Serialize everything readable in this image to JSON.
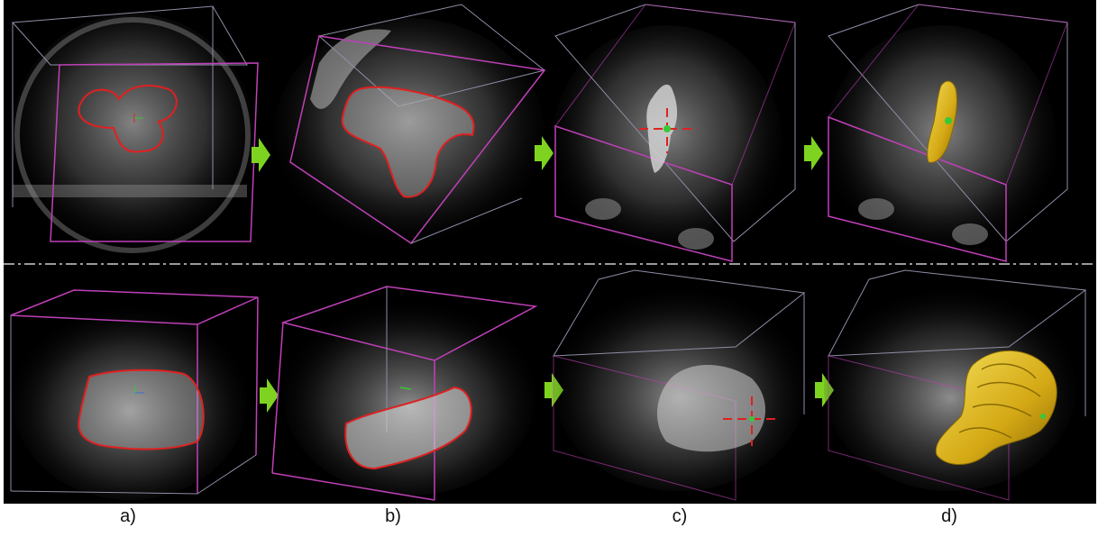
{
  "figure": {
    "background": "#000000",
    "box_color": "#c040b8",
    "box_back_color": "#8e8ea6",
    "contour_color": "#e02020",
    "arrow_color": "#7ed321",
    "segmentation_color": "#e8c21a",
    "divider_color": "#9a9a9a"
  },
  "captions": [
    "a)",
    "b)",
    "c)",
    "d)"
  ],
  "rows": [
    {
      "name": "skull-row",
      "panels": [
        "a",
        "b",
        "c",
        "d"
      ]
    },
    {
      "name": "jaw-row",
      "panels": [
        "a",
        "b",
        "c",
        "d"
      ]
    }
  ]
}
